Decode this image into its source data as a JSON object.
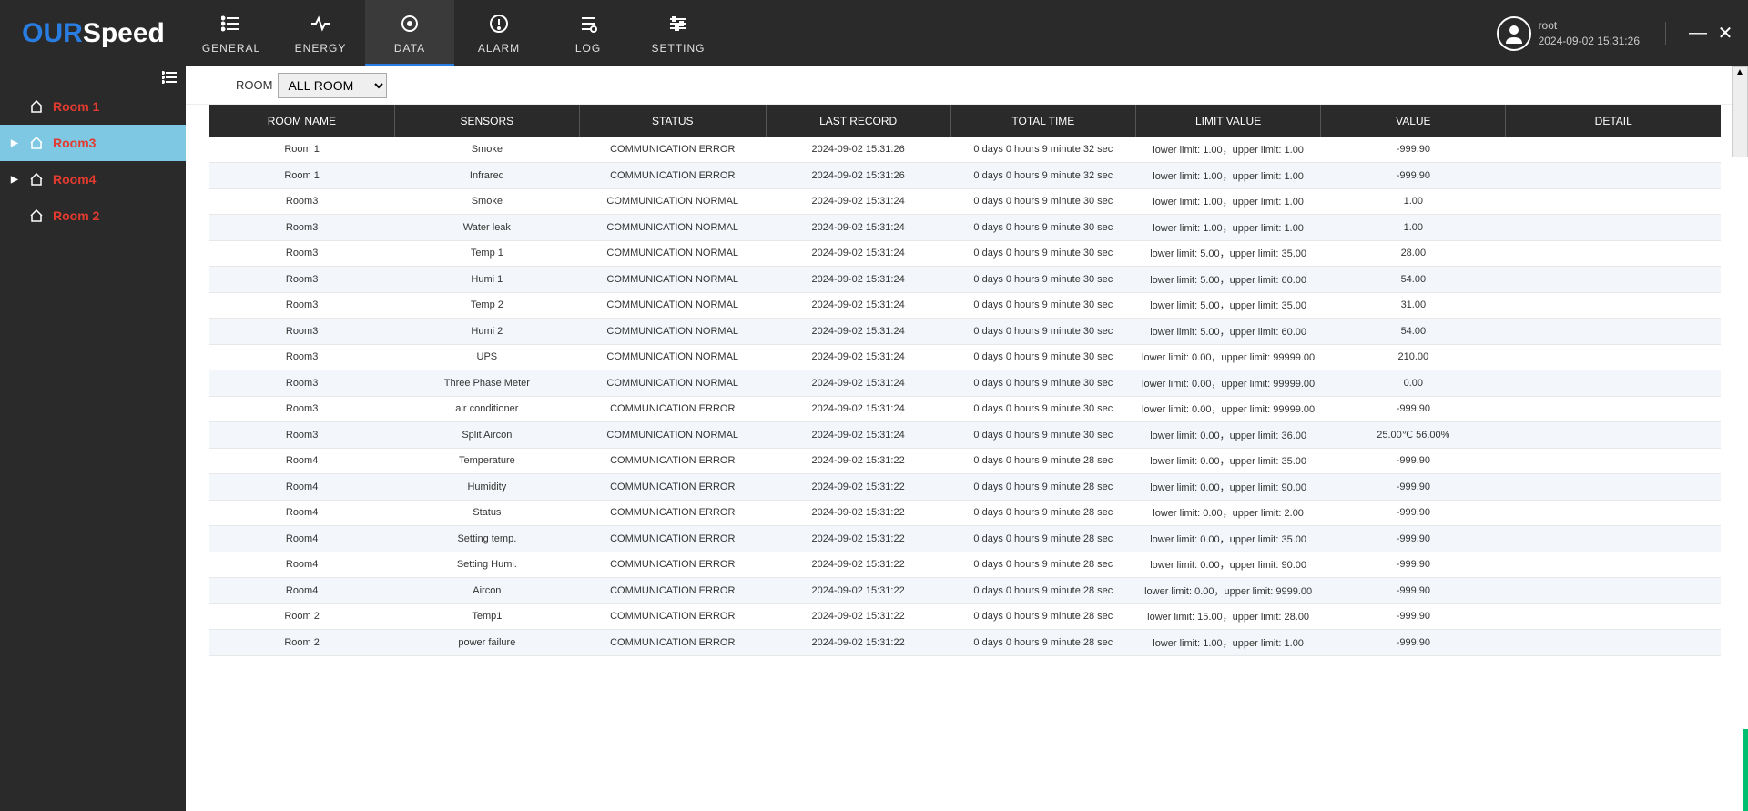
{
  "brand": {
    "part1": "OUR",
    "part2": "Speed"
  },
  "nav": {
    "general": "GENERAL",
    "energy": "ENERGY",
    "data": "DATA",
    "alarm": "ALARM",
    "log": "LOG",
    "setting": "SETTING",
    "active": "data"
  },
  "user": {
    "name": "root",
    "timestamp": "2024-09-02 15:31:26"
  },
  "room_selector": {
    "label": "ROOM",
    "value": "ALL ROOM"
  },
  "sidebar": {
    "items": [
      {
        "label": "Room 1",
        "expandable": false,
        "active": false
      },
      {
        "label": "Room3",
        "expandable": true,
        "active": true
      },
      {
        "label": "Room4",
        "expandable": true,
        "active": false
      },
      {
        "label": "Room 2",
        "expandable": false,
        "active": false
      }
    ]
  },
  "table": {
    "headers": {
      "room": "ROOM NAME",
      "sensor": "SENSORS",
      "status": "STATUS",
      "record": "LAST RECORD",
      "total": "TOTAL TIME",
      "limit": "LIMIT VALUE",
      "value": "VALUE",
      "detail": "DETAIL"
    },
    "rows": [
      {
        "room": "Room 1",
        "sensor": "Smoke",
        "status": "COMMUNICATION ERROR",
        "record": "2024-09-02 15:31:26",
        "total": "0 days 0 hours 9 minute 32 sec",
        "limit": "lower limit: 1.00，upper limit: 1.00",
        "value": "-999.90",
        "detail": ""
      },
      {
        "room": "Room 1",
        "sensor": "Infrared",
        "status": "COMMUNICATION ERROR",
        "record": "2024-09-02 15:31:26",
        "total": "0 days 0 hours 9 minute 32 sec",
        "limit": "lower limit: 1.00，upper limit: 1.00",
        "value": "-999.90",
        "detail": ""
      },
      {
        "room": "Room3",
        "sensor": "Smoke",
        "status": "COMMUNICATION NORMAL",
        "record": "2024-09-02 15:31:24",
        "total": "0 days 0 hours 9 minute 30 sec",
        "limit": "lower limit: 1.00，upper limit: 1.00",
        "value": "1.00",
        "detail": ""
      },
      {
        "room": "Room3",
        "sensor": "Water leak",
        "status": "COMMUNICATION NORMAL",
        "record": "2024-09-02 15:31:24",
        "total": "0 days 0 hours 9 minute 30 sec",
        "limit": "lower limit: 1.00，upper limit: 1.00",
        "value": "1.00",
        "detail": ""
      },
      {
        "room": "Room3",
        "sensor": "Temp 1",
        "status": "COMMUNICATION NORMAL",
        "record": "2024-09-02 15:31:24",
        "total": "0 days 0 hours 9 minute 30 sec",
        "limit": "lower limit: 5.00，upper limit: 35.00",
        "value": "28.00",
        "detail": ""
      },
      {
        "room": "Room3",
        "sensor": "Humi 1",
        "status": "COMMUNICATION NORMAL",
        "record": "2024-09-02 15:31:24",
        "total": "0 days 0 hours 9 minute 30 sec",
        "limit": "lower limit: 5.00，upper limit: 60.00",
        "value": "54.00",
        "detail": ""
      },
      {
        "room": "Room3",
        "sensor": "Temp 2",
        "status": "COMMUNICATION NORMAL",
        "record": "2024-09-02 15:31:24",
        "total": "0 days 0 hours 9 minute 30 sec",
        "limit": "lower limit: 5.00，upper limit: 35.00",
        "value": "31.00",
        "detail": ""
      },
      {
        "room": "Room3",
        "sensor": "Humi 2",
        "status": "COMMUNICATION NORMAL",
        "record": "2024-09-02 15:31:24",
        "total": "0 days 0 hours 9 minute 30 sec",
        "limit": "lower limit: 5.00，upper limit: 60.00",
        "value": "54.00",
        "detail": ""
      },
      {
        "room": "Room3",
        "sensor": "UPS",
        "status": "COMMUNICATION NORMAL",
        "record": "2024-09-02 15:31:24",
        "total": "0 days 0 hours 9 minute 30 sec",
        "limit": "lower limit: 0.00，upper limit: 99999.00",
        "value": "210.00",
        "detail": ""
      },
      {
        "room": "Room3",
        "sensor": "Three Phase Meter",
        "status": "COMMUNICATION NORMAL",
        "record": "2024-09-02 15:31:24",
        "total": "0 days 0 hours 9 minute 30 sec",
        "limit": "lower limit: 0.00，upper limit: 99999.00",
        "value": "0.00",
        "detail": ""
      },
      {
        "room": "Room3",
        "sensor": "air conditioner",
        "status": "COMMUNICATION ERROR",
        "record": "2024-09-02 15:31:24",
        "total": "0 days 0 hours 9 minute 30 sec",
        "limit": "lower limit: 0.00，upper limit: 99999.00",
        "value": "-999.90",
        "detail": ""
      },
      {
        "room": "Room3",
        "sensor": "Split Aircon",
        "status": "COMMUNICATION NORMAL",
        "record": "2024-09-02 15:31:24",
        "total": "0 days 0 hours 9 minute 30 sec",
        "limit": "lower limit: 0.00，upper limit: 36.00",
        "value": "25.00℃  56.00%",
        "detail": ""
      },
      {
        "room": "Room4",
        "sensor": "Temperature",
        "status": "COMMUNICATION ERROR",
        "record": "2024-09-02 15:31:22",
        "total": "0 days 0 hours 9 minute 28 sec",
        "limit": "lower limit: 0.00，upper limit: 35.00",
        "value": "-999.90",
        "detail": ""
      },
      {
        "room": "Room4",
        "sensor": "Humidity",
        "status": "COMMUNICATION ERROR",
        "record": "2024-09-02 15:31:22",
        "total": "0 days 0 hours 9 minute 28 sec",
        "limit": "lower limit: 0.00，upper limit: 90.00",
        "value": "-999.90",
        "detail": ""
      },
      {
        "room": "Room4",
        "sensor": "Status",
        "status": "COMMUNICATION ERROR",
        "record": "2024-09-02 15:31:22",
        "total": "0 days 0 hours 9 minute 28 sec",
        "limit": "lower limit: 0.00，upper limit: 2.00",
        "value": "-999.90",
        "detail": ""
      },
      {
        "room": "Room4",
        "sensor": "Setting temp.",
        "status": "COMMUNICATION ERROR",
        "record": "2024-09-02 15:31:22",
        "total": "0 days 0 hours 9 minute 28 sec",
        "limit": "lower limit: 0.00，upper limit: 35.00",
        "value": "-999.90",
        "detail": ""
      },
      {
        "room": "Room4",
        "sensor": "Setting Humi.",
        "status": "COMMUNICATION ERROR",
        "record": "2024-09-02 15:31:22",
        "total": "0 days 0 hours 9 minute 28 sec",
        "limit": "lower limit: 0.00，upper limit: 90.00",
        "value": "-999.90",
        "detail": ""
      },
      {
        "room": "Room4",
        "sensor": "Aircon",
        "status": "COMMUNICATION ERROR",
        "record": "2024-09-02 15:31:22",
        "total": "0 days 0 hours 9 minute 28 sec",
        "limit": "lower limit: 0.00，upper limit: 9999.00",
        "value": "-999.90",
        "detail": ""
      },
      {
        "room": "Room 2",
        "sensor": "Temp1",
        "status": "COMMUNICATION ERROR",
        "record": "2024-09-02 15:31:22",
        "total": "0 days 0 hours 9 minute 28 sec",
        "limit": "lower limit: 15.00，upper limit: 28.00",
        "value": "-999.90",
        "detail": ""
      },
      {
        "room": "Room 2",
        "sensor": "power failure",
        "status": "COMMUNICATION ERROR",
        "record": "2024-09-02 15:31:22",
        "total": "0 days 0 hours 9 minute 28 sec",
        "limit": "lower limit: 1.00，upper limit: 1.00",
        "value": "-999.90",
        "detail": ""
      }
    ]
  },
  "colors": {
    "topbar_bg": "#2a2a2a",
    "accent_blue": "#2a7de0",
    "sidebar_active": "#7ec8e3",
    "room_label": "#e33b2f",
    "row_alt": "#f3f6fa",
    "scroll_green": "#00c070"
  }
}
